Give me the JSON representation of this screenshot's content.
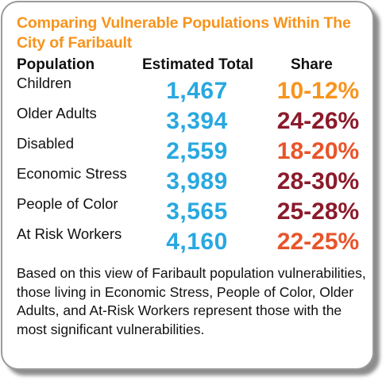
{
  "title": "Comparing Vulnerable Populations Within The City of Faribault",
  "headers": {
    "population": "Population",
    "total": "Estimated Total",
    "share": "Share"
  },
  "rows": [
    {
      "population": "Children",
      "total": "1,467",
      "share": "10-12%",
      "share_color": "#f7941d"
    },
    {
      "population": "Older Adults",
      "total": "3,394",
      "share": "24-26%",
      "share_color": "#8b1a2b"
    },
    {
      "population": "Disabled",
      "total": "2,559",
      "share": "18-20%",
      "share_color": "#e8542a"
    },
    {
      "population": "Economic Stress",
      "total": "3,989",
      "share": "28-30%",
      "share_color": "#8b1a2b"
    },
    {
      "population": "People of Color",
      "total": "3,565",
      "share": "25-28%",
      "share_color": "#8b1a2b"
    },
    {
      "population": "At Risk Workers",
      "total": "4,160",
      "share": "22-25%",
      "share_color": "#e8542a"
    }
  ],
  "summary": "Based on this view of Faribault population vulnerabilities, those living in Economic Stress, People of Color, Older Adults, and At-Risk Workers represent those with the most significant vulnerabilities.",
  "colors": {
    "title": "#f7941d",
    "total": "#29a8e0"
  }
}
